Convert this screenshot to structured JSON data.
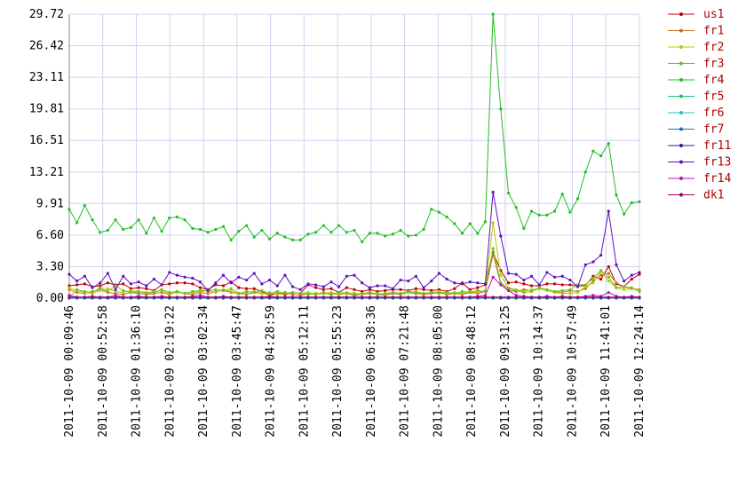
{
  "chart_data": {
    "type": "line",
    "legend": "right",
    "grid": true,
    "xlim": [
      "2011-10-09 00:09:46",
      "2011-10-09 12:24:14"
    ],
    "xticks": [
      "2011-10-09 00:09:46",
      "2011-10-09 00:52:58",
      "2011-10-09 01:36:10",
      "2011-10-09 02:19:22",
      "2011-10-09 03:02:34",
      "2011-10-09 03:45:47",
      "2011-10-09 04:28:59",
      "2011-10-09 05:12:11",
      "2011-10-09 05:55:23",
      "2011-10-09 06:38:36",
      "2011-10-09 07:21:48",
      "2011-10-09 08:05:00",
      "2011-10-09 08:48:12",
      "2011-10-09 09:31:25",
      "2011-10-09 10:14:37",
      "2011-10-09 10:57:49",
      "2011-10-09 11:41:01",
      "2011-10-09 12:24:14"
    ],
    "ylim": [
      0,
      29.72
    ],
    "yticks": [
      {
        "value": 0,
        "label": "0.00"
      },
      {
        "value": 3.3,
        "label": "3.30"
      },
      {
        "value": 6.6,
        "label": "6.60"
      },
      {
        "value": 9.91,
        "label": "9.91"
      },
      {
        "value": 13.21,
        "label": "13.21"
      },
      {
        "value": 16.51,
        "label": "16.51"
      },
      {
        "value": 19.81,
        "label": "19.81"
      },
      {
        "value": 23.11,
        "label": "23.11"
      },
      {
        "value": 26.42,
        "label": "26.42"
      },
      {
        "value": 29.72,
        "label": "29.72"
      }
    ],
    "x": [
      "2011-10-09 00:09:46",
      "2011-10-09 00:19:42",
      "2011-10-09 00:29:37",
      "2011-10-09 00:39:33",
      "2011-10-09 00:49:28",
      "2011-10-09 00:59:24",
      "2011-10-09 01:09:19",
      "2011-10-09 01:19:15",
      "2011-10-09 01:29:10",
      "2011-10-09 01:39:06",
      "2011-10-09 01:49:01",
      "2011-10-09 01:58:57",
      "2011-10-09 02:08:52",
      "2011-10-09 02:18:48",
      "2011-10-09 02:28:43",
      "2011-10-09 02:38:39",
      "2011-10-09 02:48:34",
      "2011-10-09 02:58:30",
      "2011-10-09 03:08:25",
      "2011-10-09 03:18:21",
      "2011-10-09 03:28:16",
      "2011-10-09 03:38:12",
      "2011-10-09 03:48:07",
      "2011-10-09 03:58:03",
      "2011-10-09 04:07:58",
      "2011-10-09 04:17:54",
      "2011-10-09 04:27:49",
      "2011-10-09 04:37:45",
      "2011-10-09 04:47:40",
      "2011-10-09 04:57:36",
      "2011-10-09 05:07:31",
      "2011-10-09 05:17:27",
      "2011-10-09 05:27:22",
      "2011-10-09 05:37:18",
      "2011-10-09 05:47:13",
      "2011-10-09 05:57:09",
      "2011-10-09 06:07:04",
      "2011-10-09 06:17:00",
      "2011-10-09 06:26:55",
      "2011-10-09 06:36:51",
      "2011-10-09 06:46:46",
      "2011-10-09 06:56:42",
      "2011-10-09 07:06:37",
      "2011-10-09 07:16:33",
      "2011-10-09 07:26:28",
      "2011-10-09 07:36:24",
      "2011-10-09 07:46:19",
      "2011-10-09 07:56:15",
      "2011-10-09 08:06:10",
      "2011-10-09 08:16:06",
      "2011-10-09 08:26:01",
      "2011-10-09 08:35:57",
      "2011-10-09 08:45:52",
      "2011-10-09 08:55:48",
      "2011-10-09 09:05:43",
      "2011-10-09 09:15:39",
      "2011-10-09 09:25:34",
      "2011-10-09 09:35:30",
      "2011-10-09 09:45:25",
      "2011-10-09 09:55:21",
      "2011-10-09 10:05:16",
      "2011-10-09 10:15:12",
      "2011-10-09 10:25:07",
      "2011-10-09 10:35:03",
      "2011-10-09 10:44:58",
      "2011-10-09 10:54:54",
      "2011-10-09 11:04:49",
      "2011-10-09 11:14:45",
      "2011-10-09 11:24:40",
      "2011-10-09 11:34:36",
      "2011-10-09 11:44:31",
      "2011-10-09 11:54:27",
      "2011-10-09 12:04:22",
      "2011-10-09 12:14:18",
      "2011-10-09 12:24:14"
    ],
    "series": [
      {
        "name": "us1",
        "color": "#c00000",
        "values": [
          1.3,
          1.4,
          1.5,
          1.2,
          1.3,
          1.6,
          1.4,
          1.5,
          1.0,
          1.1,
          1.0,
          0.8,
          1.4,
          1.5,
          1.6,
          1.6,
          1.5,
          1.1,
          0.9,
          1.4,
          1.3,
          1.7,
          1.1,
          1.0,
          1.0,
          0.7,
          0.3,
          0.5,
          0.4,
          0.6,
          0.5,
          1.4,
          1.1,
          0.9,
          1.0,
          0.6,
          1.1,
          0.9,
          0.7,
          0.9,
          0.7,
          0.8,
          0.9,
          0.9,
          0.8,
          1.0,
          0.9,
          0.8,
          0.9,
          0.7,
          1.0,
          1.6,
          0.9,
          1.1,
          1.4,
          4.8,
          2.9,
          1.6,
          1.7,
          1.5,
          1.3,
          1.3,
          1.5,
          1.5,
          1.4,
          1.4,
          1.3,
          1.3,
          2.3,
          2.0,
          3.3,
          1.5,
          1.2,
          2.0,
          2.5
        ]
      },
      {
        "name": "fr1",
        "color": "#c87020",
        "values": [
          0.9,
          0.6,
          0.5,
          0.7,
          0.9,
          0.6,
          0.5,
          0.4,
          0.6,
          0.5,
          0.4,
          0.5,
          0.6,
          0.4,
          0.7,
          0.5,
          0.4,
          0.6,
          0.5,
          0.7,
          0.8,
          0.6,
          0.5,
          0.4,
          0.6,
          0.5,
          0.4,
          0.5,
          0.6,
          0.4,
          0.3,
          0.5,
          0.4,
          0.6,
          0.5,
          0.4,
          0.5,
          0.3,
          0.4,
          0.5,
          0.4,
          0.3,
          0.5,
          0.4,
          0.6,
          0.5,
          0.4,
          0.5,
          0.6,
          0.4,
          0.5,
          0.4,
          0.6,
          0.5,
          0.7,
          4.6,
          1.5,
          0.8,
          0.7,
          0.9,
          0.8,
          1.0,
          0.9,
          0.7,
          0.6,
          0.8,
          0.7,
          1.0,
          1.8,
          2.4,
          2.6,
          1.6,
          1.2,
          1.0,
          0.9
        ]
      },
      {
        "name": "fr2",
        "color": "#b8c800",
        "values": [
          1.1,
          0.8,
          0.6,
          0.5,
          0.8,
          1.0,
          0.7,
          0.6,
          0.8,
          0.7,
          0.6,
          0.7,
          0.8,
          0.5,
          0.6,
          0.5,
          0.6,
          0.7,
          0.8,
          0.6,
          0.9,
          0.7,
          0.5,
          0.6,
          0.7,
          0.5,
          0.6,
          0.4,
          0.5,
          0.6,
          0.5,
          0.6,
          0.4,
          0.5,
          0.6,
          0.4,
          0.6,
          0.5,
          0.4,
          0.6,
          0.5,
          0.4,
          0.6,
          0.5,
          0.6,
          0.7,
          0.5,
          0.6,
          0.7,
          0.5,
          0.6,
          0.5,
          0.7,
          0.6,
          0.8,
          7.9,
          2.4,
          1.1,
          0.9,
          0.7,
          0.9,
          1.0,
          0.8,
          0.6,
          0.5,
          0.5,
          0.6,
          1.2,
          1.6,
          2.8,
          1.8,
          1.1,
          0.9,
          1.0,
          0.8
        ]
      },
      {
        "name": "fr3",
        "color": "#70c020",
        "values": [
          0.1,
          0.9,
          0.7,
          0.6,
          1.1,
          0.7,
          1.3,
          0.8,
          0.6,
          0.7,
          0.5,
          0.6,
          0.9,
          0.6,
          0.7,
          0.5,
          0.7,
          0.8,
          0.8,
          0.9,
          0.8,
          1.0,
          0.5,
          0.7,
          0.6,
          0.8,
          0.5,
          0.7,
          0.5,
          0.6,
          0.5,
          0.4,
          0.5,
          0.5,
          0.4,
          0.6,
          0.5,
          0.4,
          0.5,
          0.6,
          0.4,
          0.5,
          0.6,
          0.5,
          0.7,
          0.6,
          0.5,
          0.6,
          0.5,
          0.6,
          0.5,
          0.7,
          0.6,
          0.8,
          0.7,
          5.2,
          1.6,
          1.0,
          0.8,
          0.6,
          0.7,
          1.1,
          0.9,
          0.7,
          0.8,
          0.9,
          1.4,
          1.4,
          2.1,
          2.9,
          2.2,
          1.1,
          1.2,
          1.1,
          0.7
        ]
      },
      {
        "name": "fr4",
        "color": "#20c020",
        "values": [
          9.3,
          7.9,
          9.7,
          8.2,
          6.9,
          7.1,
          8.2,
          7.2,
          7.4,
          8.2,
          6.8,
          8.4,
          7.0,
          8.4,
          8.5,
          8.2,
          7.3,
          7.2,
          6.9,
          7.2,
          7.5,
          6.1,
          7.0,
          7.6,
          6.4,
          7.1,
          6.2,
          6.8,
          6.4,
          6.1,
          6.1,
          6.7,
          6.9,
          7.6,
          6.9,
          7.6,
          6.9,
          7.1,
          5.9,
          6.8,
          6.8,
          6.5,
          6.7,
          7.1,
          6.5,
          6.6,
          7.2,
          9.3,
          9.0,
          8.5,
          7.8,
          6.8,
          7.8,
          6.8,
          8.0,
          29.72,
          19.8,
          11.0,
          9.5,
          7.3,
          9.1,
          8.7,
          8.7,
          9.1,
          10.9,
          9.0,
          10.4,
          13.2,
          15.4,
          14.9,
          16.2,
          10.8,
          8.8,
          10.0,
          10.1
        ]
      },
      {
        "name": "fr5",
        "color": "#20c070",
        "values": [
          0,
          0,
          0,
          0,
          0,
          0,
          0,
          0,
          0,
          0,
          0,
          0,
          0,
          0,
          0,
          0,
          0,
          0,
          0,
          0,
          0,
          0,
          0,
          0,
          0,
          0,
          0,
          0,
          0,
          0,
          0,
          0,
          0,
          0,
          0,
          0,
          0,
          0,
          0,
          0,
          0,
          0,
          0,
          0,
          0,
          0,
          0,
          0,
          0,
          0,
          0,
          0,
          0,
          0,
          0,
          0,
          0,
          0,
          0,
          0,
          0,
          0,
          0,
          0,
          0,
          0,
          0,
          0,
          0,
          0,
          0,
          0,
          0,
          0,
          0
        ]
      },
      {
        "name": "fr6",
        "color": "#20c0c0",
        "values": [
          0,
          0,
          0,
          0,
          0,
          0,
          0,
          0,
          0,
          0,
          0,
          0,
          0,
          0,
          0,
          0,
          0,
          0,
          0,
          0,
          0,
          0,
          0,
          0,
          0,
          0,
          0,
          0,
          0,
          0,
          0,
          0,
          0,
          0,
          0,
          0,
          0,
          0,
          0,
          0,
          0,
          0,
          0,
          0,
          0,
          0,
          0,
          0,
          0,
          0,
          0,
          0,
          0,
          0,
          0,
          0,
          0,
          0,
          0,
          0,
          0,
          0,
          0,
          0,
          0,
          0,
          0,
          0,
          0,
          0,
          0,
          0,
          0,
          0,
          0
        ]
      },
      {
        "name": "fr7",
        "color": "#2070c0",
        "values": [
          0,
          0,
          0,
          0,
          0,
          0,
          0,
          0,
          0,
          0,
          0,
          0,
          0,
          0,
          0,
          0,
          0,
          0,
          0,
          0,
          0,
          0,
          0,
          0,
          0,
          0,
          0,
          0,
          0,
          0,
          0,
          0,
          0,
          0,
          0,
          0,
          0,
          0,
          0,
          0,
          0,
          0,
          0,
          0,
          0,
          0,
          0,
          0,
          0,
          0,
          0,
          0,
          0,
          0,
          0,
          0,
          0,
          0,
          0,
          0,
          0,
          0,
          0,
          0,
          0,
          0,
          0,
          0,
          0,
          0,
          0,
          0,
          0,
          0,
          0
        ]
      },
      {
        "name": "fr11",
        "color": "#2020a0",
        "values": [
          0.1,
          0.1,
          0.1,
          0.1,
          0.1,
          0.1,
          0.1,
          0.1,
          0.1,
          0.1,
          0.1,
          0.1,
          0.1,
          0.1,
          0.1,
          0.1,
          0.1,
          0.1,
          0.1,
          0.1,
          0.1,
          0.1,
          0.1,
          0.1,
          0.1,
          0.1,
          0.1,
          0.1,
          0.1,
          0.1,
          0.1,
          0.1,
          0.1,
          0.1,
          0.1,
          0.1,
          0.1,
          0.1,
          0.1,
          0.1,
          0.1,
          0.1,
          0.1,
          0.1,
          0.1,
          0.1,
          0.1,
          0.1,
          0.1,
          0.1,
          0.1,
          0.1,
          0.1,
          0.1,
          0.1,
          0.1,
          0.1,
          0.1,
          0.1,
          0.1,
          0.1,
          0.1,
          0.1,
          0.1,
          0.1,
          0.1,
          0.1,
          0.1,
          0.1,
          0.1,
          0.1,
          0.1,
          0.1,
          0.1,
          0.1
        ]
      },
      {
        "name": "fr13",
        "color": "#6010c0",
        "values": [
          2.5,
          1.8,
          2.3,
          1.1,
          1.6,
          2.6,
          0.9,
          2.3,
          1.5,
          1.7,
          1.3,
          2.0,
          1.4,
          2.7,
          2.4,
          2.2,
          2.1,
          1.7,
          0.8,
          1.6,
          2.4,
          1.6,
          2.2,
          1.9,
          2.6,
          1.5,
          1.9,
          1.3,
          2.4,
          1.2,
          0.9,
          1.5,
          1.4,
          1.2,
          1.7,
          1.2,
          2.3,
          2.4,
          1.6,
          1.1,
          1.3,
          1.3,
          1.0,
          1.9,
          1.8,
          2.3,
          1.1,
          1.8,
          2.6,
          2.0,
          1.6,
          1.5,
          1.7,
          1.6,
          1.5,
          11.1,
          6.5,
          2.6,
          2.5,
          1.9,
          2.3,
          1.4,
          2.7,
          2.2,
          2.3,
          1.9,
          1.2,
          3.5,
          3.8,
          4.5,
          9.1,
          3.5,
          1.8,
          2.4,
          2.7
        ]
      },
      {
        "name": "fr14",
        "color": "#c010c0",
        "values": [
          0.3,
          0.1,
          0.1,
          0.2,
          0.1,
          0.1,
          0.3,
          0.1,
          0.1,
          0.2,
          0.1,
          0.1,
          0.2,
          0.1,
          0.1,
          0.1,
          0.2,
          0.3,
          0.1,
          0.1,
          0.2,
          0.1,
          0.1,
          0.1,
          0.1,
          0.1,
          0.2,
          0.1,
          0.1,
          0.1,
          0.1,
          0.1,
          0.1,
          0.1,
          0.1,
          0.1,
          0.1,
          0.1,
          0.1,
          0.1,
          0.1,
          0.1,
          0.1,
          0.1,
          0.1,
          0.1,
          0.1,
          0.1,
          0.1,
          0.1,
          0.1,
          0.1,
          0.1,
          0.2,
          0.3,
          2.2,
          1.4,
          0.8,
          0.3,
          0.2,
          0.1,
          0.1,
          0.2,
          0.1,
          0.2,
          0.1,
          0.1,
          0.2,
          0.3,
          0.2,
          0.6,
          0.2,
          0.1,
          0.2,
          0.1
        ]
      },
      {
        "name": "dk1",
        "color": "#a00060",
        "values": [
          0.1,
          0.1,
          0.1,
          0.1,
          0.1,
          0.1,
          0.1,
          0.1,
          0.1,
          0.1,
          0.1,
          0.1,
          0.1,
          0.1,
          0.1,
          0.1,
          0.1,
          0.1,
          0.1,
          0.1,
          0.1,
          0.1,
          0.1,
          0.1,
          0.1,
          0.1,
          0.1,
          0.1,
          0.1,
          0.1,
          0.1,
          0.1,
          0.1,
          0.1,
          0.1,
          0.1,
          0.1,
          0.1,
          0.1,
          0.1,
          0.1,
          0.1,
          0.1,
          0.1,
          0.1,
          0.1,
          0.1,
          0.1,
          0.1,
          0.1,
          0.1,
          0.1,
          0.1,
          0.1,
          0.1,
          0.1,
          0.1,
          0.1,
          0.1,
          0.1,
          0.1,
          0.1,
          0.1,
          0.1,
          0.1,
          0.1,
          0.1,
          0.1,
          0.1,
          0.1,
          0.1,
          0.1,
          0.1,
          0.1,
          0.1
        ]
      }
    ]
  }
}
